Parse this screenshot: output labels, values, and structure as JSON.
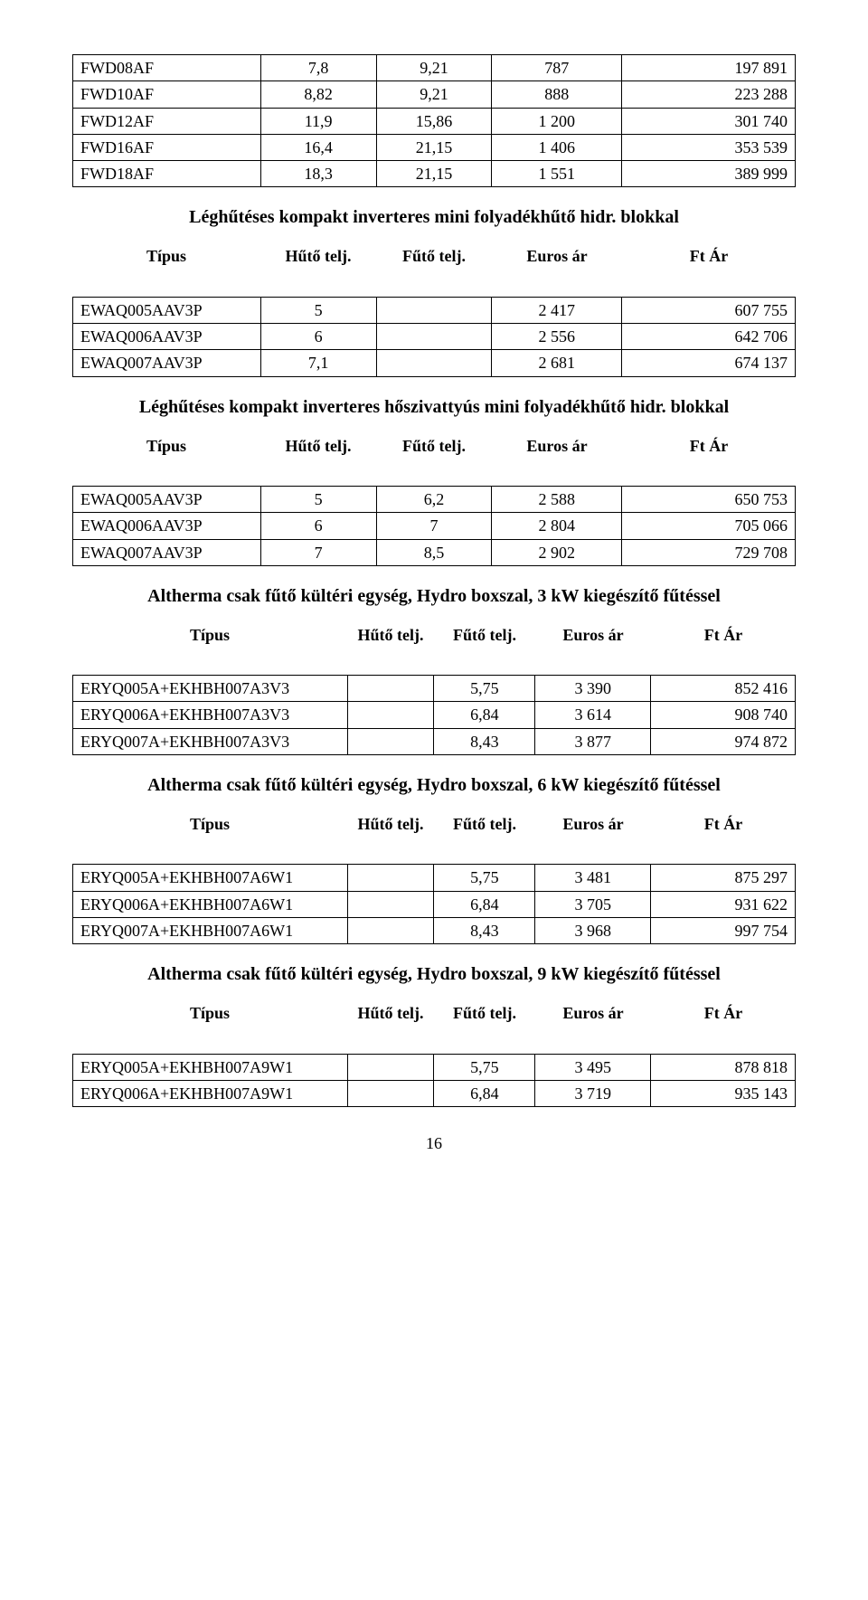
{
  "top_table": {
    "cols": [
      "c0",
      "cnum",
      "cnum",
      "cnum",
      "cright"
    ],
    "widths": [
      "26%",
      "16%",
      "16%",
      "18%",
      "24%"
    ],
    "rows": [
      [
        "FWD08AF",
        "7,8",
        "9,21",
        "787",
        "197 891"
      ],
      [
        "FWD10AF",
        "8,82",
        "9,21",
        "888",
        "223 288"
      ],
      [
        "FWD12AF",
        "11,9",
        "15,86",
        "1 200",
        "301 740"
      ],
      [
        "FWD16AF",
        "16,4",
        "21,15",
        "1 406",
        "353 539"
      ],
      [
        "FWD18AF",
        "18,3",
        "21,15",
        "1 551",
        "389 999"
      ]
    ]
  },
  "header_labels": {
    "tipus": "Típus",
    "huto": "Hűtő telj.",
    "futo": "Fűtő telj.",
    "euros": "Euros ár",
    "ft": "Ft Ár"
  },
  "sections": [
    {
      "title": "Léghűtéses kompakt inverteres mini folyadékhűtő hidr. blokkal",
      "cols": [
        "c0",
        "cnum",
        "cnum",
        "cnum",
        "cright"
      ],
      "widths": [
        "26%",
        "16%",
        "16%",
        "18%",
        "24%"
      ],
      "rows": [
        [
          "EWAQ005AAV3P",
          "5",
          "",
          "2 417",
          "607 755"
        ],
        [
          "EWAQ006AAV3P",
          "6",
          "",
          "2 556",
          "642 706"
        ],
        [
          "EWAQ007AAV3P",
          "7,1",
          "",
          "2 681",
          "674 137"
        ]
      ]
    },
    {
      "title": "Léghűtéses kompakt inverteres hőszivattyús mini folyadékhűtő hidr. blokkal",
      "cols": [
        "c0",
        "cnum",
        "cnum",
        "cnum",
        "cright"
      ],
      "widths": [
        "26%",
        "16%",
        "16%",
        "18%",
        "24%"
      ],
      "rows": [
        [
          "EWAQ005AAV3P",
          "5",
          "6,2",
          "2 588",
          "650 753"
        ],
        [
          "EWAQ006AAV3P",
          "6",
          "7",
          "2 804",
          "705 066"
        ],
        [
          "EWAQ007AAV3P",
          "7",
          "8,5",
          "2 902",
          "729 708"
        ]
      ]
    },
    {
      "title": "Altherma csak fűtő kültéri egység, Hydro boxszal, 3 kW kiegészítő fűtéssel",
      "cols": [
        "c0",
        "cnum",
        "cnum",
        "cnum",
        "cright"
      ],
      "widths": [
        "38%",
        "12%",
        "14%",
        "16%",
        "20%"
      ],
      "rows": [
        [
          "ERYQ005A+EKHBH007A3V3",
          "",
          "5,75",
          "3 390",
          "852 416"
        ],
        [
          "ERYQ006A+EKHBH007A3V3",
          "",
          "6,84",
          "3 614",
          "908 740"
        ],
        [
          "ERYQ007A+EKHBH007A3V3",
          "",
          "8,43",
          "3 877",
          "974 872"
        ]
      ]
    },
    {
      "title": "Altherma csak fűtő kültéri egység, Hydro boxszal, 6 kW kiegészítő fűtéssel",
      "cols": [
        "c0",
        "cnum",
        "cnum",
        "cnum",
        "cright"
      ],
      "widths": [
        "38%",
        "12%",
        "14%",
        "16%",
        "20%"
      ],
      "rows": [
        [
          "ERYQ005A+EKHBH007A6W1",
          "",
          "5,75",
          "3 481",
          "875 297"
        ],
        [
          "ERYQ006A+EKHBH007A6W1",
          "",
          "6,84",
          "3 705",
          "931 622"
        ],
        [
          "ERYQ007A+EKHBH007A6W1",
          "",
          "8,43",
          "3 968",
          "997 754"
        ]
      ]
    },
    {
      "title": "Altherma csak fűtő kültéri egység, Hydro boxszal, 9 kW kiegészítő fűtéssel",
      "cols": [
        "c0",
        "cnum",
        "cnum",
        "cnum",
        "cright"
      ],
      "widths": [
        "38%",
        "12%",
        "14%",
        "16%",
        "20%"
      ],
      "rows": [
        [
          "ERYQ005A+EKHBH007A9W1",
          "",
          "5,75",
          "3 495",
          "878 818"
        ],
        [
          "ERYQ006A+EKHBH007A9W1",
          "",
          "6,84",
          "3 719",
          "935 143"
        ]
      ]
    }
  ],
  "page_number": "16"
}
